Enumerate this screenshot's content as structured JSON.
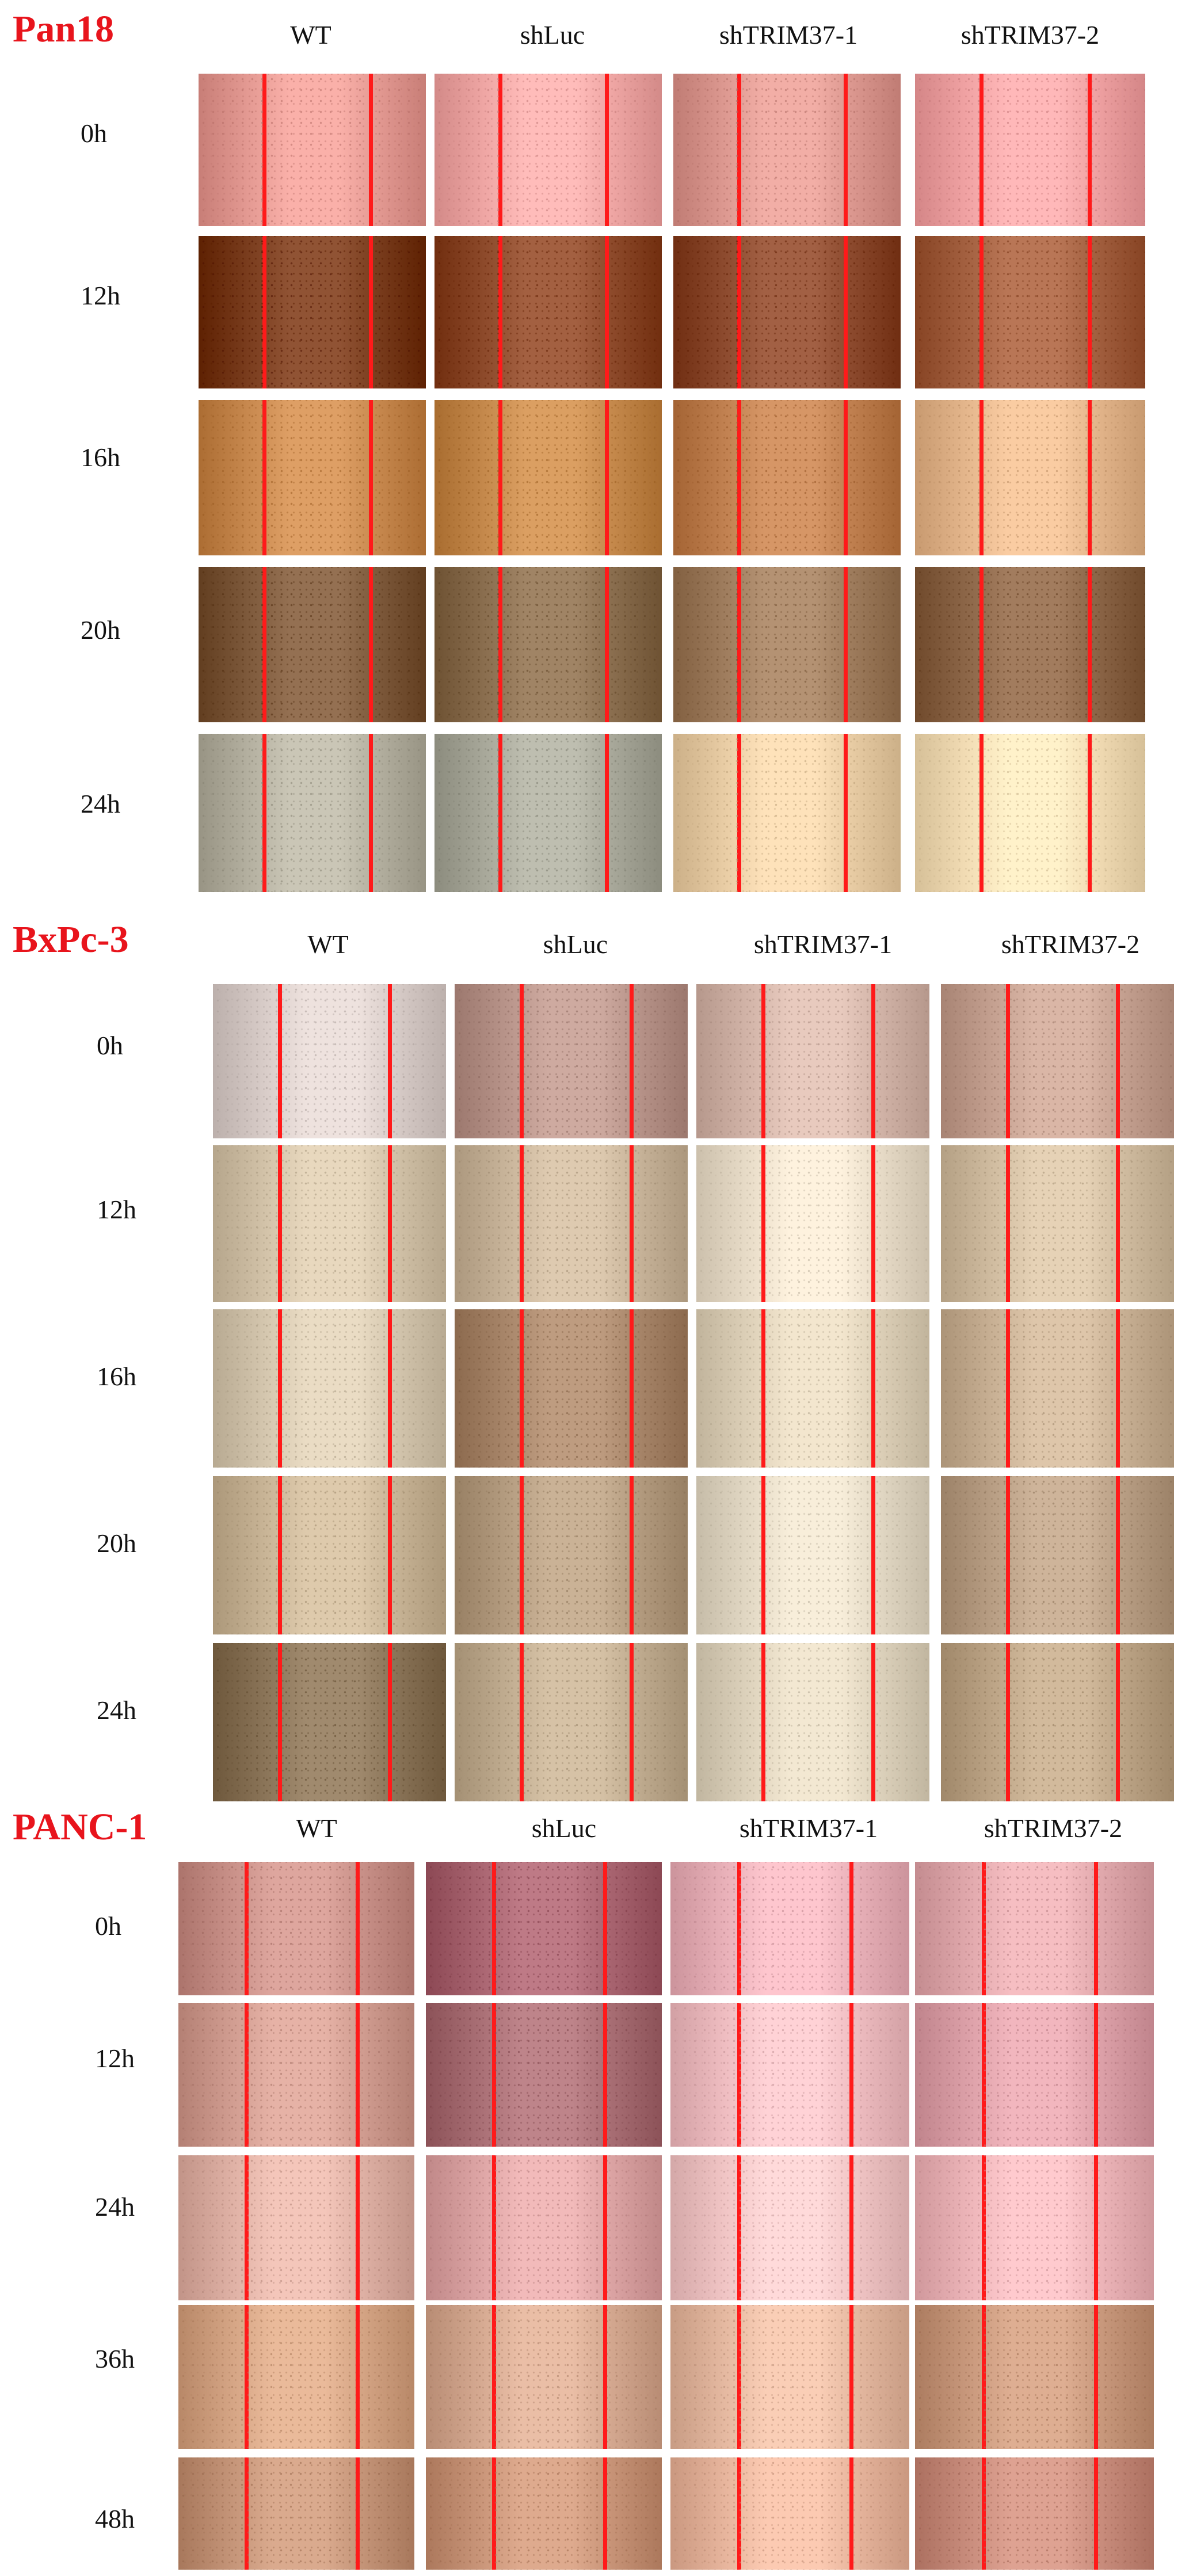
{
  "panels": [
    {
      "title": "Pan18",
      "columns": [
        "WT",
        "shLuc",
        "shTRIM37-1",
        "shTRIM37-2"
      ],
      "rows": [
        "0h",
        "12h",
        "16h",
        "20h",
        "24h"
      ],
      "colors": [
        [
          "#e49a93",
          "#efa6a4",
          "#dc9890",
          "#f0a2a3"
        ],
        [
          "#7a3d1e",
          "#8d4a2b",
          "#8c4a2e",
          "#a36040"
        ],
        [
          "#c8894f",
          "#c5894c",
          "#c08050",
          "#e4b68c"
        ],
        [
          "#7e5a3c",
          "#8a6e4f",
          "#9e7c5d",
          "#8c6648"
        ],
        [
          "#b4b0a0",
          "#a8a89a",
          "#e8cca4",
          "#f2dcb4"
        ]
      ]
    },
    {
      "title": "BxPc-3",
      "columns": [
        "WT",
        "shLuc",
        "shTRIM37-1",
        "shTRIM37-2"
      ],
      "rows": [
        "0h",
        "12h",
        "16h",
        "20h",
        "24h"
      ],
      "colors": [
        [
          "#d8ccc8",
          "#b8948a",
          "#d2b4a8",
          "#c4a090"
        ],
        [
          "#d2c2a8",
          "#c8b49a",
          "#e8dcc8",
          "#d0bca0"
        ],
        [
          "#d4c6ae",
          "#a8866a",
          "#ddd0b8",
          "#c8b094"
        ],
        [
          "#c8b496",
          "#b49c80",
          "#e2d8c4",
          "#b89e84"
        ],
        [
          "#8a7458",
          "#c0ac90",
          "#ddd2bc",
          "#bca486"
        ]
      ]
    },
    {
      "title": "PANC-1",
      "columns": [
        "WT",
        "shLuc",
        "shTRIM37-1",
        "shTRIM37-2"
      ],
      "rows": [
        "0h",
        "12h",
        "24h",
        "36h",
        "48h"
      ],
      "colors": [
        [
          "#c89088",
          "#a86470",
          "#e8b0b8",
          "#e0a8ac"
        ],
        [
          "#d09c90",
          "#a86e74",
          "#eebcc0",
          "#dca0a8"
        ],
        [
          "#deb0a4",
          "#dca4a4",
          "#f0c4c4",
          "#ecb4b8"
        ],
        [
          "#d4a484",
          "#d4a890",
          "#e4b8a0",
          "#c8987c"
        ],
        [
          "#c49478",
          "#c89478",
          "#e6b49c",
          "#c88c7c"
        ]
      ]
    }
  ]
}
